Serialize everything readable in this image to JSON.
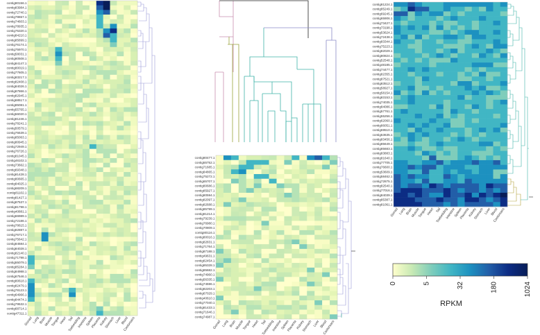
{
  "chart_data": {
    "type": "heatmap",
    "columns": [
      "Gonad",
      "Lung",
      "Brain",
      "Muscle",
      "Tongue",
      "Heart",
      "Tail",
      "Toebedding",
      "Intestine",
      "Spleen",
      "Placenta",
      "Kidney",
      "Stomach",
      "Liver",
      "Blood",
      "Castorsacs"
    ],
    "colorbar": {
      "title": "RPKM",
      "ticks": [
        "0",
        "5",
        "32",
        "180",
        "1024"
      ],
      "stops": [
        "#ffffcc",
        "#c7e9b4",
        "#7fcdbb",
        "#41b6c4",
        "#1d91c0",
        "#225ea8",
        "#0c2c84",
        "#081d58"
      ]
    },
    "panels": [
      {
        "name": "left",
        "rows": [
          "contig80156.1",
          "contig83984.1",
          "contig72740.1",
          "contig78657.1",
          "contig74603.1",
          "contig78935.1",
          "contig75320.1",
          "contig84210.1",
          "contig85899.1",
          "contig76174.1",
          "contig75970.1",
          "contig58031.1",
          "contig80508.1",
          "contig84147.1",
          "contig80019.1",
          "contig77605.1",
          "contig83217.1",
          "contig82408.1",
          "contig84026.1",
          "contig87866.1",
          "contig82945.1",
          "contig68517.1",
          "contig85081.1",
          "contig55765.1",
          "contig56020.1",
          "contig81246.1",
          "contig78241.1",
          "contig50579.1",
          "contig75539.1",
          "contig85063.1",
          "contig80945.1",
          "contig72949.1",
          "contig76726.1",
          "contig81045.1",
          "contig46102.1",
          "contig73662.1",
          "contig69348.1",
          "contig81428.1",
          "contig80665.1",
          "contig84025.1",
          "contig68209.1",
          "contig81102.1",
          "contig81427.1",
          "contig87537.1",
          "contig81798.1",
          "contig40881.1",
          "contig66989.1",
          "contig72186.1",
          "contig78615.1",
          "contig82887.1",
          "contig76717.1",
          "contig75642.1",
          "contig84584.1",
          "contig84028.1",
          "contig82140.1",
          "contig71798.1",
          "contig55079.1",
          "contig85284.1",
          "contig84988.1",
          "contig67546.1",
          "contig80618.1",
          "contig82479.1",
          "contig78123.1",
          "contig64966.1",
          "contig84474.1",
          "contig79532.1",
          "contig68714.1",
          "contig47311.1"
        ],
        "hot": [
          [
            0,
            10,
            6
          ],
          [
            0,
            11,
            7
          ],
          [
            1,
            11,
            7
          ],
          [
            1,
            10,
            5
          ],
          [
            2,
            10,
            4
          ],
          [
            2,
            11,
            5
          ],
          [
            3,
            10,
            3
          ],
          [
            4,
            10,
            3
          ],
          [
            5,
            10,
            3
          ],
          [
            5,
            12,
            4
          ],
          [
            6,
            11,
            4
          ],
          [
            6,
            12,
            6
          ],
          [
            7,
            11,
            5
          ],
          [
            7,
            12,
            3
          ],
          [
            8,
            12,
            3
          ],
          [
            9,
            12,
            2
          ],
          [
            10,
            4,
            3
          ],
          [
            11,
            4,
            4
          ],
          [
            12,
            4,
            3
          ],
          [
            13,
            4,
            2
          ],
          [
            31,
            9,
            3
          ],
          [
            50,
            2,
            4
          ],
          [
            51,
            2,
            4
          ],
          [
            55,
            0,
            3
          ],
          [
            56,
            0,
            3
          ],
          [
            57,
            0,
            2
          ],
          [
            60,
            0,
            3
          ],
          [
            61,
            0,
            4
          ],
          [
            62,
            0,
            4
          ],
          [
            63,
            0,
            4
          ],
          [
            62,
            6,
            3
          ],
          [
            63,
            6,
            4
          ],
          [
            64,
            0,
            3
          ],
          [
            67,
            10,
            3
          ],
          [
            66,
            10,
            2
          ]
        ]
      },
      {
        "name": "middle",
        "rows": [
          "contig80477.1",
          "contig55752.1",
          "contig71685.1",
          "contig84865.1",
          "contig75272.1",
          "contig65707.1",
          "contig80686.1",
          "contig85927.1",
          "contig80594.1",
          "contig82097.1",
          "contig82688.1",
          "contig85799.1",
          "contig81214.1",
          "contig79239.1",
          "contig76980.1",
          "contig70809.1",
          "contig80116.1",
          "contig80016.1",
          "contig82831.1",
          "contig71764.1",
          "contig87188.1",
          "contig49631.1",
          "contig82454.1",
          "contig85328.1",
          "contig85682.1",
          "contig74960.1",
          "contig56335.1",
          "contig74596.1",
          "contig82203.1",
          "contig67029.1",
          "contig40610.1",
          "contig77040.1",
          "contig81433.1",
          "contig71646.1",
          "contig74987.1"
        ],
        "hot": [
          [
            0,
            1,
            4
          ],
          [
            0,
            2,
            3
          ],
          [
            0,
            10,
            3
          ],
          [
            0,
            12,
            4
          ],
          [
            0,
            13,
            5
          ],
          [
            0,
            14,
            3
          ],
          [
            1,
            4,
            3
          ],
          [
            1,
            5,
            3
          ],
          [
            1,
            6,
            3
          ],
          [
            1,
            9,
            2
          ],
          [
            1,
            15,
            2
          ],
          [
            2,
            3,
            3
          ],
          [
            2,
            4,
            3
          ],
          [
            2,
            14,
            2
          ],
          [
            3,
            2,
            3
          ],
          [
            3,
            3,
            4
          ],
          [
            4,
            5,
            3
          ],
          [
            4,
            6,
            3
          ],
          [
            5,
            2,
            2
          ],
          [
            5,
            7,
            3
          ],
          [
            6,
            5,
            2
          ],
          [
            6,
            8,
            2
          ],
          [
            7,
            4,
            2
          ],
          [
            8,
            9,
            2
          ],
          [
            9,
            3,
            2
          ],
          [
            10,
            1,
            2
          ],
          [
            14,
            6,
            2
          ],
          [
            18,
            10,
            2
          ],
          [
            19,
            11,
            2
          ],
          [
            20,
            0,
            2
          ],
          [
            22,
            1,
            2
          ],
          [
            23,
            0,
            2
          ],
          [
            24,
            12,
            2
          ],
          [
            25,
            14,
            2
          ],
          [
            26,
            0,
            2
          ],
          [
            27,
            12,
            2
          ],
          [
            28,
            5,
            2
          ],
          [
            30,
            0,
            2
          ],
          [
            31,
            13,
            2
          ],
          [
            33,
            2,
            2
          ],
          [
            34,
            15,
            2
          ]
        ]
      },
      {
        "name": "right",
        "rows": [
          "contig81224.1",
          "contig85249.1",
          "contig69245.1",
          "contig65906.1",
          "contig73427.1",
          "contig73198.1",
          "contig53624.1",
          "contig72438.1",
          "contig83344.1",
          "contig75223.1",
          "contig82029.1",
          "contig80824.1",
          "contig52548.1",
          "contig48185.1",
          "contig74477.1",
          "contig82355.1",
          "contig87521.1",
          "contig83512.1",
          "contig58927.1",
          "contig58154.1",
          "contig83153.1",
          "contig74035.1",
          "contig84086.1",
          "contig57761.1",
          "contig55256.1",
          "contig62060.1",
          "contig86051.1",
          "contig69510.1",
          "contig53635.1",
          "contig83456.1",
          "contig85649.1",
          "contig85683.1",
          "contig83883.1",
          "contig81640.1",
          "contig77705.1",
          "contig76600.1",
          "contig53609.1",
          "contig58462.1",
          "contig72875.1",
          "contig82540.1",
          "contig77016.1",
          "contig84039.1",
          "contig85387.1",
          "contig81061.1"
        ],
        "base": [
          4,
          3,
          3,
          3,
          3,
          3,
          3,
          3,
          3,
          3,
          3,
          3,
          3,
          3,
          3,
          3,
          3,
          3,
          3,
          3,
          3,
          3,
          3,
          3,
          3,
          3,
          3,
          3,
          3,
          3,
          3,
          3,
          3,
          3,
          4,
          4,
          4,
          4,
          4,
          5,
          5,
          5,
          5,
          5
        ],
        "hot": [
          [
            0,
            2,
            5
          ],
          [
            0,
            3,
            4
          ],
          [
            0,
            13,
            4
          ],
          [
            1,
            2,
            6
          ],
          [
            1,
            3,
            5
          ],
          [
            1,
            4,
            5
          ],
          [
            2,
            0,
            5
          ],
          [
            2,
            1,
            5
          ],
          [
            2,
            6,
            4
          ],
          [
            40,
            15,
            5
          ],
          [
            41,
            0,
            6
          ],
          [
            41,
            1,
            6
          ],
          [
            41,
            15,
            7
          ],
          [
            42,
            0,
            6
          ],
          [
            42,
            1,
            6
          ],
          [
            42,
            2,
            6
          ],
          [
            42,
            15,
            6
          ],
          [
            43,
            0,
            6
          ],
          [
            43,
            1,
            6
          ],
          [
            43,
            2,
            6
          ],
          [
            43,
            3,
            6
          ],
          [
            43,
            4,
            5
          ],
          [
            43,
            15,
            6
          ],
          [
            33,
            5,
            5
          ],
          [
            35,
            2,
            5
          ],
          [
            37,
            0,
            5
          ],
          [
            38,
            0,
            5
          ],
          [
            39,
            2,
            5
          ],
          [
            36,
            14,
            2
          ],
          [
            36,
            15,
            2
          ],
          [
            37,
            14,
            2
          ],
          [
            30,
            14,
            2
          ],
          [
            20,
            14,
            2
          ],
          [
            10,
            15,
            2
          ]
        ]
      }
    ]
  }
}
